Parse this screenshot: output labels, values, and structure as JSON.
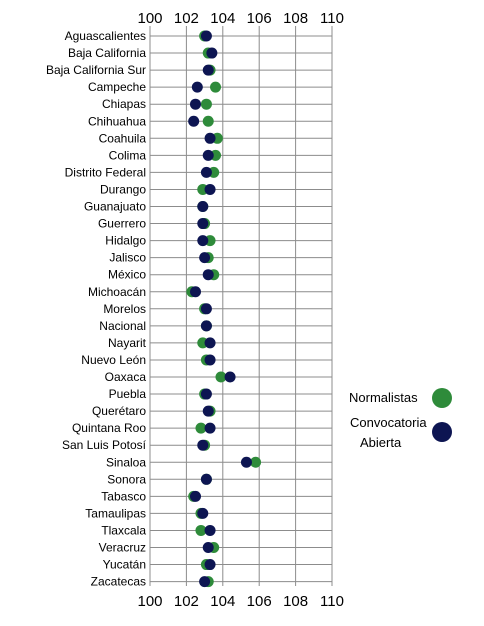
{
  "chart_data": {
    "type": "scatter",
    "orientation": "horizontal-dot-plot",
    "xlim": [
      100,
      110
    ],
    "xticks": [
      100,
      102,
      104,
      106,
      108,
      110
    ],
    "xtick_labels": [
      "100",
      "102",
      "104",
      "106",
      "108",
      "110"
    ],
    "categories": [
      "Aguascalientes",
      "Baja California",
      "Baja California Sur",
      "Campeche",
      "Chiapas",
      "Chihuahua",
      "Coahuila",
      "Colima",
      "Distrito Federal",
      "Durango",
      "Guanajuato",
      "Guerrero",
      "Hidalgo",
      "Jalisco",
      "México",
      "Michoacán",
      "Morelos",
      "Nacional",
      "Nayarit",
      "Nuevo León",
      "Oaxaca",
      "Puebla",
      "Querétaro",
      "Quintana Roo",
      "San Luis Potosí",
      "Sinaloa",
      "Sonora",
      "Tabasco",
      "Tamaulipas",
      "Tlaxcala",
      "Veracruz",
      "Yucatán",
      "Zacatecas"
    ],
    "series": [
      {
        "name": "Normalistas",
        "color": "#2e8b3a",
        "values": [
          103.0,
          103.2,
          103.3,
          103.6,
          103.1,
          103.2,
          103.7,
          103.6,
          103.5,
          102.9,
          102.9,
          103.0,
          103.3,
          103.2,
          103.5,
          102.3,
          103.0,
          103.1,
          102.9,
          103.1,
          103.9,
          103.0,
          103.3,
          102.8,
          103.0,
          105.8,
          103.1,
          102.4,
          102.8,
          102.8,
          103.5,
          103.1,
          103.2
        ]
      },
      {
        "name": "Convocatoria Abierta",
        "color": "#0d1552",
        "values": [
          103.1,
          103.4,
          103.2,
          102.6,
          102.5,
          102.4,
          103.3,
          103.2,
          103.1,
          103.3,
          102.9,
          102.9,
          102.9,
          103.0,
          103.2,
          102.5,
          103.1,
          103.1,
          103.3,
          103.3,
          104.4,
          103.1,
          103.2,
          103.3,
          102.9,
          105.3,
          103.1,
          102.5,
          102.9,
          103.3,
          103.2,
          103.3,
          103.0
        ]
      }
    ],
    "legend_position": "right",
    "grid": true
  }
}
